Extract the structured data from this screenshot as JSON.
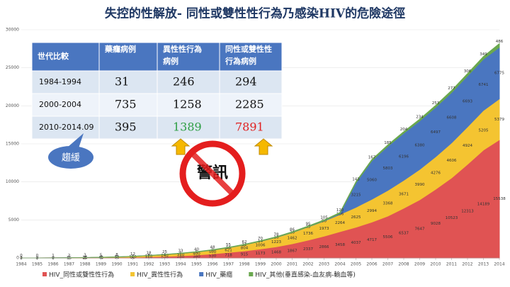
{
  "chart_data": {
    "type": "area",
    "title": "失控的性解放- 同性或雙性性行為乃感染HIV的危險途徑",
    "x": [
      1984,
      1985,
      1986,
      1987,
      1988,
      1989,
      1990,
      1991,
      1992,
      1993,
      1994,
      1995,
      1996,
      1997,
      1998,
      1999,
      2000,
      2001,
      2002,
      2003,
      2004,
      2005,
      2006,
      2007,
      2008,
      2009,
      2010,
      2011,
      2012,
      2013,
      2014
    ],
    "xlim": [
      1984,
      2014
    ],
    "xticks": [
      1984,
      1985,
      1986,
      1987,
      1988,
      1989,
      1990,
      1991,
      1992,
      1993,
      1994,
      1995,
      1996,
      1997,
      1998,
      1999,
      2000,
      2001,
      2002,
      2003,
      2004,
      2005,
      2006,
      2007,
      2008,
      2009,
      2010,
      2011,
      2012,
      2013,
      2014
    ],
    "ylim": [
      0,
      30000
    ],
    "yticks": [
      0,
      5000,
      10000,
      15000,
      20000,
      25000,
      30000
    ],
    "stacked": true,
    "series": [
      {
        "name": "HIV_同性或雙性性行為",
        "color": "#e05353",
        "values": [
          1,
          3,
          8,
          15,
          25,
          40,
          60,
          95,
          140,
          200,
          280,
          380,
          530,
          718,
          915,
          1173,
          1468,
          1867,
          2337,
          2866,
          3458,
          4037,
          4717,
          5506,
          6537,
          7647,
          9028,
          10523,
          12313,
          14189,
          15538
        ]
      },
      {
        "name": "HIV_異性性行為",
        "color": "#f4c431",
        "values": [
          2,
          2,
          7,
          15,
          25,
          45,
          70,
          110,
          170,
          240,
          310,
          400,
          500,
          621,
          804,
          1006,
          1223,
          1462,
          1736,
          1973,
          2264,
          2625,
          2994,
          3368,
          3671,
          3990,
          4276,
          4606,
          4924,
          5205,
          5379
        ]
      },
      {
        "name": "HIV_藥癮",
        "color": "#4a76c0",
        "values": [
          0,
          0,
          0,
          0,
          1,
          1,
          2,
          2,
          3,
          4,
          5,
          6,
          8,
          10,
          12,
          14,
          16,
          20,
          25,
          50,
          136,
          3215,
          5060,
          5803,
          6196,
          6380,
          6497,
          6608,
          6693,
          6741,
          6775
        ]
      },
      {
        "name": "HIV_其他(垂直感染-血友病-輸血等)",
        "color": "#6aa84f",
        "values": [
          0,
          0,
          1,
          2,
          3,
          5,
          8,
          12,
          18,
          25,
          33,
          40,
          48,
          55,
          62,
          70,
          78,
          86,
          95,
          105,
          120,
          143,
          167,
          185,
          204,
          234,
          253,
          277,
          306,
          349,
          486
        ]
      }
    ],
    "table": {
      "header": [
        "世代比較",
        "藥癮病例",
        "異性性行為病例",
        "同性或雙性性行為病例"
      ],
      "rows": [
        [
          "1984-1994",
          "31",
          "246",
          "294"
        ],
        [
          "2000-2004",
          "735",
          "1258",
          "2285"
        ],
        [
          "2010-2014.09",
          "395",
          "1389",
          "7891"
        ]
      ]
    },
    "annotations": [
      "趨緩",
      "警訊"
    ]
  }
}
